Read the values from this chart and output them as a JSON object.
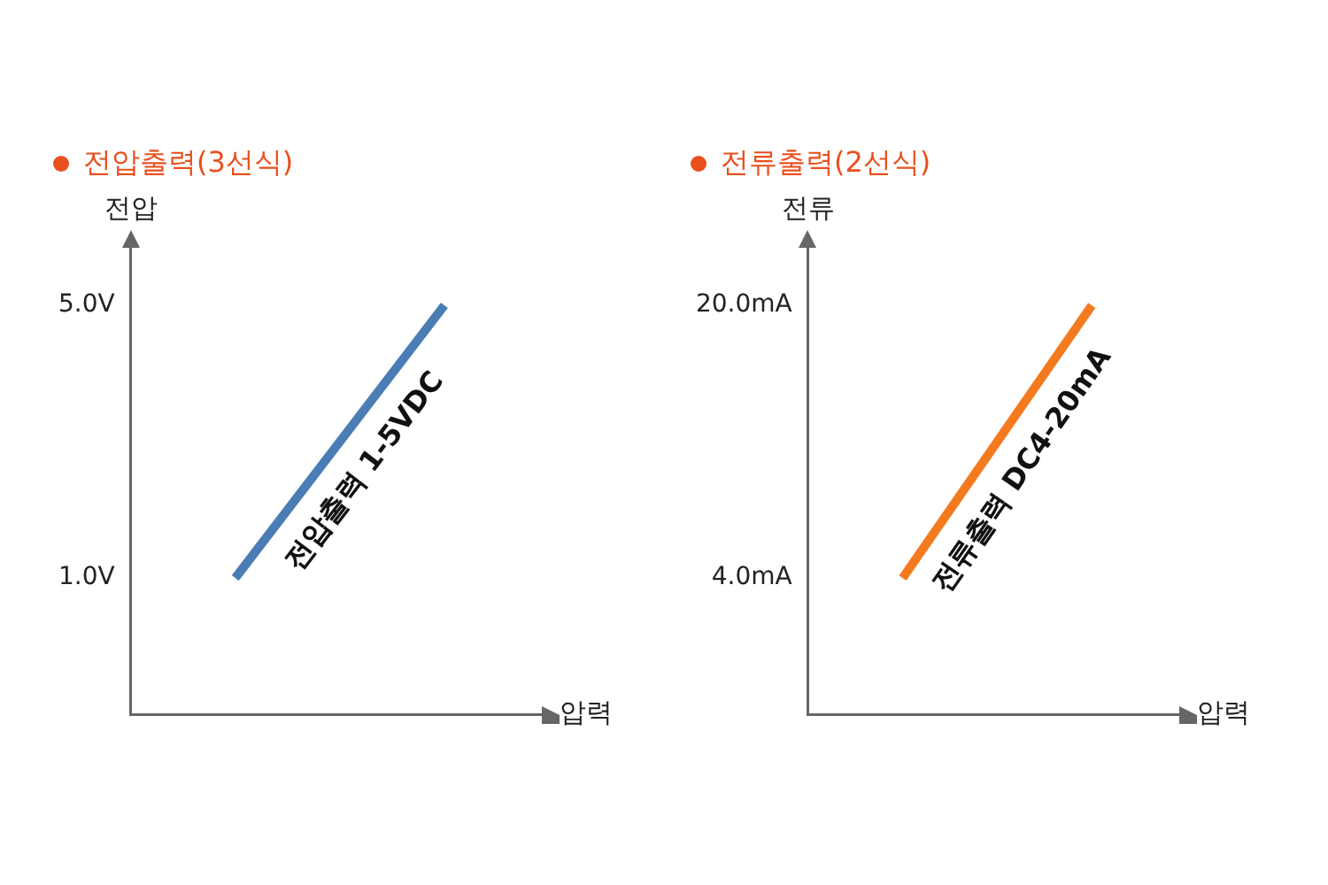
{
  "chart_data": [
    {
      "type": "line",
      "title": "전압출력(3선식)",
      "ylabel": "전압",
      "xlabel": "압력",
      "categories": [
        null,
        null
      ],
      "series": [
        {
          "name": "전압출력 1-5VDC",
          "color": "#4a7db5",
          "values": [
            1,
            5
          ]
        }
      ],
      "ylim": [
        -1,
        6
      ],
      "yticks": [
        {
          "value": 1,
          "label": "1.0V"
        },
        {
          "value": 5,
          "label": "5.0V"
        }
      ],
      "grid": false,
      "legend": false,
      "marker": "none"
    },
    {
      "type": "line",
      "title": "전류출력(2선식)",
      "ylabel": "전류",
      "xlabel": "압력",
      "categories": [
        null,
        null
      ],
      "series": [
        {
          "name": "전류출력 DC4-20mA",
          "color": "#f47a1f",
          "values": [
            4,
            20
          ]
        }
      ],
      "ylim": [
        -4,
        24
      ],
      "yticks": [
        {
          "value": 4,
          "label": "4.0mA"
        },
        {
          "value": 20,
          "label": "20.0mA"
        }
      ],
      "grid": false,
      "legend": false,
      "marker": "none"
    }
  ]
}
